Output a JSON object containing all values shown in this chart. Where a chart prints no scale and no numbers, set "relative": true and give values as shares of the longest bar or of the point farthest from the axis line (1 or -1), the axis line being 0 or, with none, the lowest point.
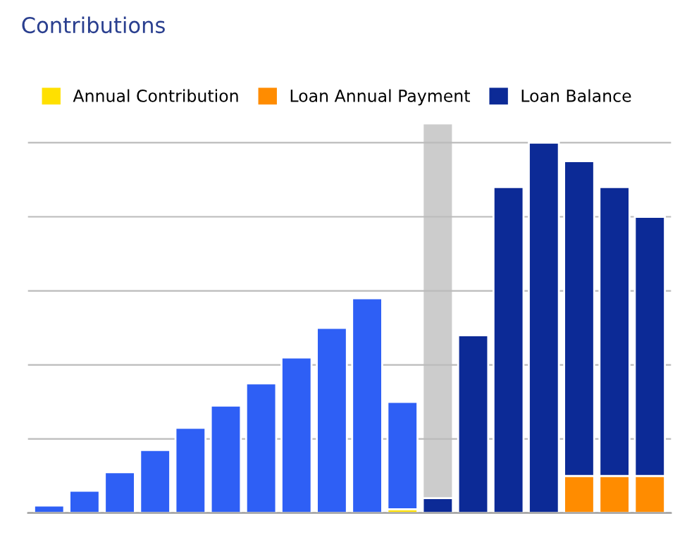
{
  "chart_data": {
    "type": "bar",
    "title": "Contributions",
    "relative": true,
    "stacked": true,
    "grid": "y",
    "legend": "top",
    "categories": [
      null,
      null,
      null,
      null,
      null,
      null,
      null,
      null,
      null,
      null,
      null,
      null,
      null,
      null,
      null,
      null,
      null,
      null
    ],
    "series": [
      {
        "name": "Annual Contribution",
        "color": "#ffe000",
        "values": [
          null,
          null,
          null,
          null,
          null,
          null,
          null,
          null,
          null,
          null,
          0.01,
          null,
          null,
          null,
          null,
          null,
          null,
          null
        ]
      },
      {
        "name": "Loan Annual Payment",
        "color": "#ff8c00",
        "values": [
          null,
          null,
          null,
          null,
          null,
          null,
          null,
          null,
          null,
          null,
          null,
          null,
          null,
          null,
          null,
          0.1,
          0.1,
          0.1
        ]
      },
      {
        "color": "#2e5ff5",
        "values": [
          0.02,
          0.06,
          0.11,
          0.17,
          0.23,
          0.29,
          0.35,
          0.42,
          0.5,
          0.58,
          0.29,
          null,
          null,
          null,
          null,
          null,
          null,
          null
        ]
      },
      {
        "name": "Loan Balance",
        "color": "#0c2a96",
        "values": [
          null,
          null,
          null,
          null,
          null,
          null,
          null,
          null,
          null,
          null,
          null,
          0.04,
          0.48,
          0.88,
          1,
          0.85,
          0.78,
          0.7
        ]
      }
    ]
  }
}
